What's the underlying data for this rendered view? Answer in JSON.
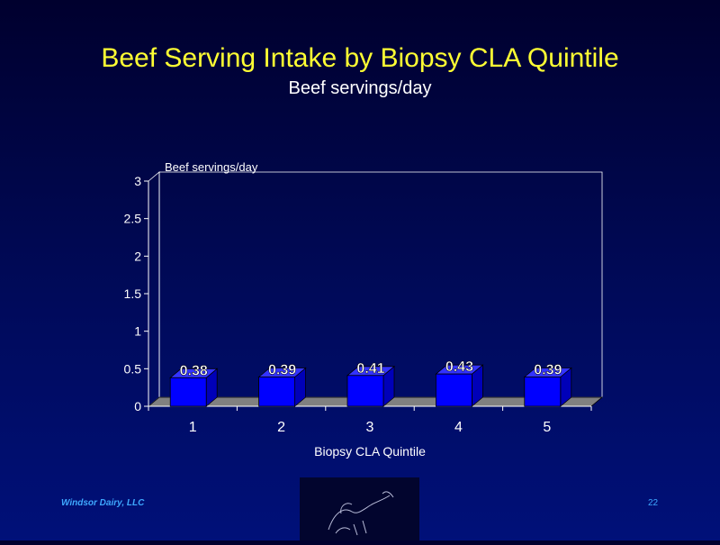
{
  "slide": {
    "title": "Beef Serving Intake by Biopsy CLA Quintile",
    "subtitle": "Beef servings/day"
  },
  "footer": {
    "company": "Windsor Dairy, LLC",
    "page_number": "22"
  },
  "colors": {
    "title": "#ffff33",
    "bar_face": "#0000ff",
    "bar_side": "#0000b8",
    "bar_top": "#3333ff",
    "floor": "#808080",
    "footer": "#3ea8ff"
  },
  "chart_data": {
    "type": "bar",
    "categories": [
      "1",
      "2",
      "3",
      "4",
      "5"
    ],
    "values": [
      0.38,
      0.39,
      0.41,
      0.43,
      0.39
    ],
    "data_labels": [
      "0.38",
      "0.39",
      "0.41",
      "0.43",
      "0.39"
    ],
    "ylabel": "Beef servings/day",
    "xlabel": "Biopsy CLA Quintile",
    "ylim": [
      0,
      3
    ],
    "yticks": [
      "0",
      "0.5",
      "1",
      "1.5",
      "2",
      "2.5",
      "3"
    ],
    "grid": false,
    "legend": "none",
    "style": "3d"
  }
}
